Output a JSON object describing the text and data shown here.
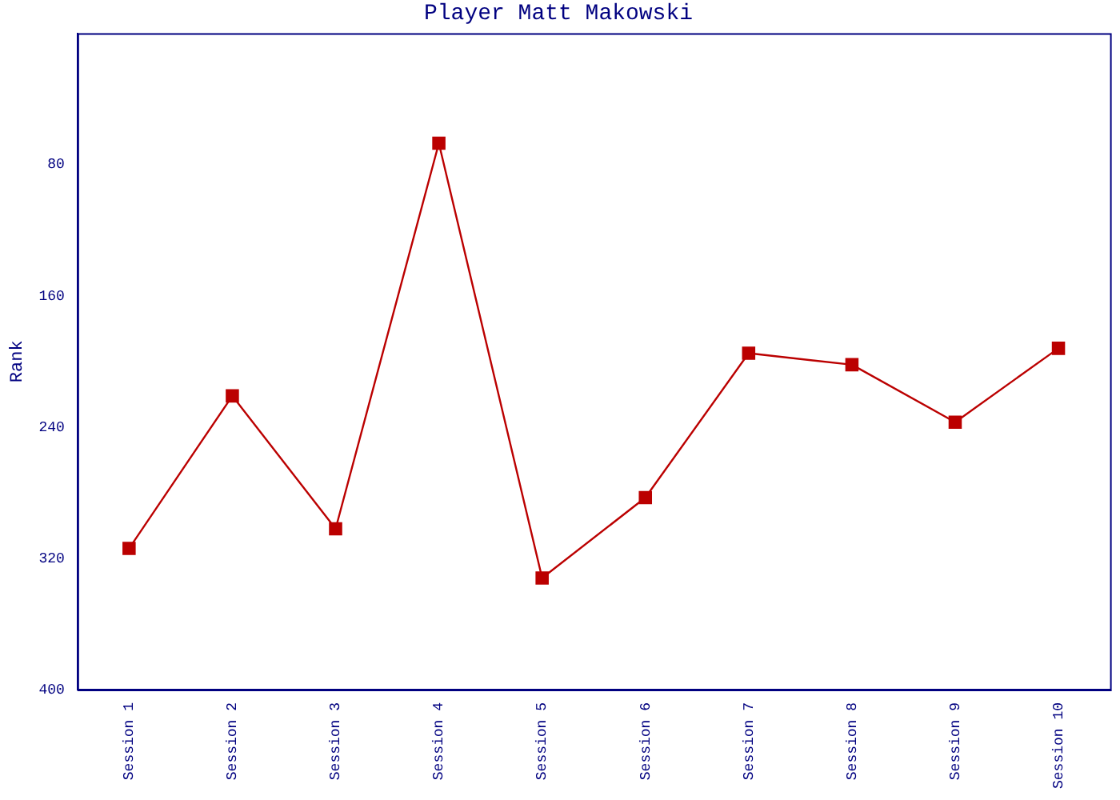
{
  "chart_data": {
    "type": "line",
    "title": "Player Matt Makowski",
    "ylabel": "Rank",
    "categories": [
      "Session 1",
      "Session 2",
      "Session 3",
      "Session 4",
      "Session 5",
      "Session 6",
      "Session 7",
      "Session 8",
      "Session 9",
      "Session 10"
    ],
    "series": [
      {
        "color": "#bb0000",
        "values": [
          314,
          221,
          302,
          67,
          332,
          283,
          195,
          202,
          237,
          192
        ]
      }
    ],
    "ylim": [
      400,
      0
    ],
    "yticks": [
      80,
      160,
      240,
      320,
      400
    ],
    "grid": false,
    "legend": false,
    "marker": "square",
    "line_style": "solid"
  }
}
